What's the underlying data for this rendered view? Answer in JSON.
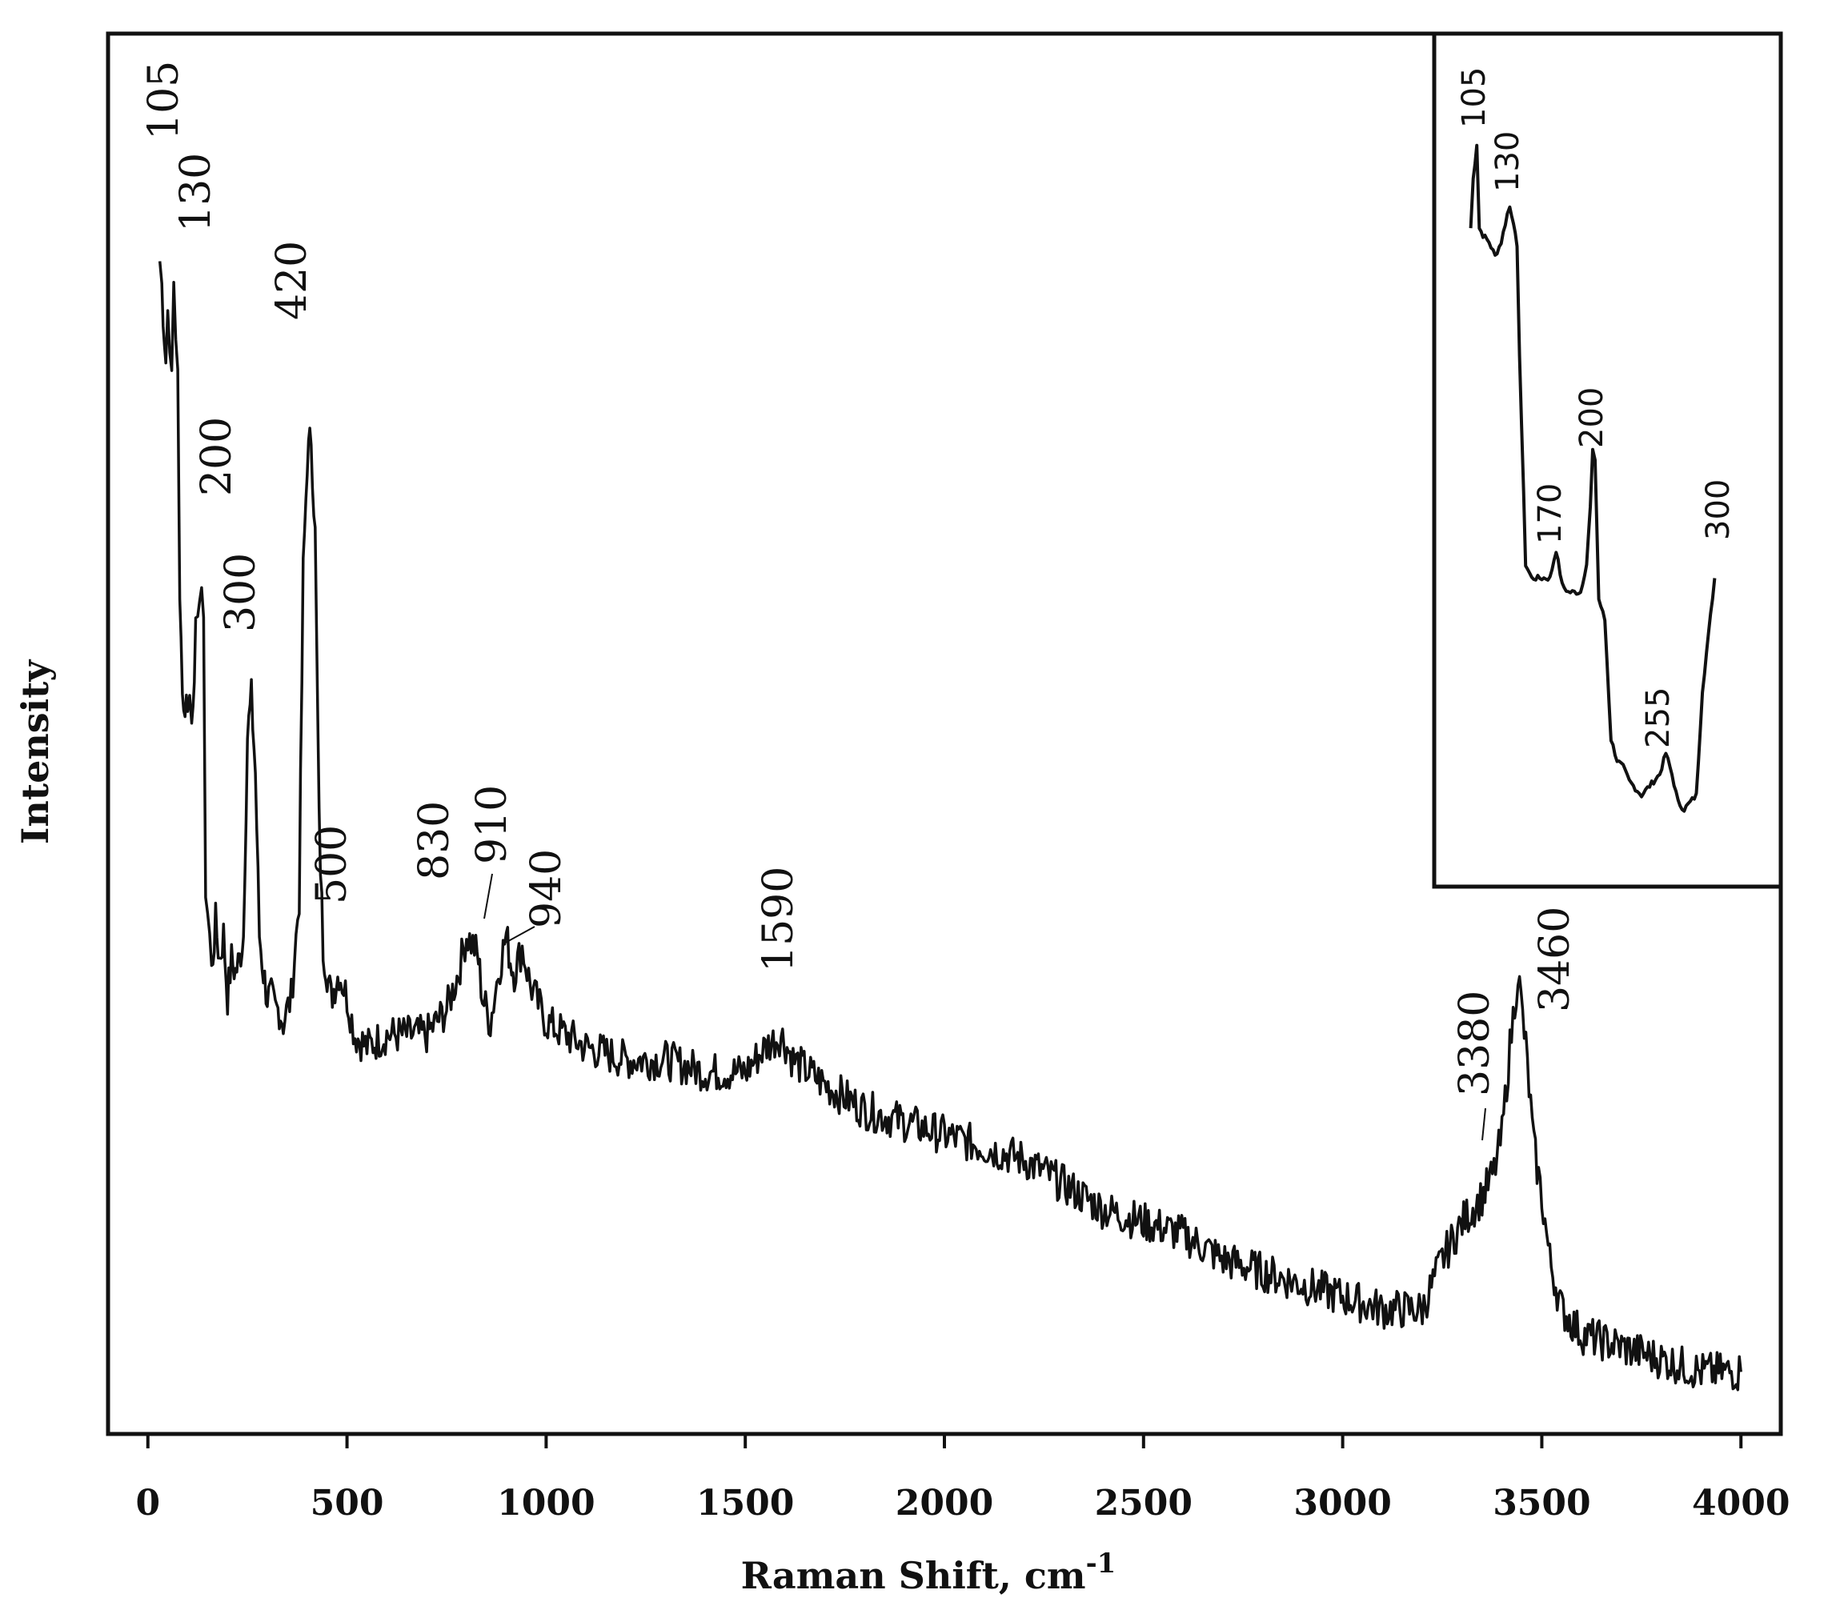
{
  "chart_data": [
    {
      "type": "line",
      "xlabel": "Raman Shift, cm",
      "xlabel_superscript": "-1",
      "ylabel": "Intensity",
      "xlim": [
        -100,
        4100
      ],
      "ylim": [
        0,
        100
      ],
      "y_ticks_shown": false,
      "grid": false,
      "x_ticks": [
        0,
        500,
        1000,
        1500,
        2000,
        2500,
        3000,
        3500,
        4000
      ],
      "x_tick_labels": [
        "0",
        "500",
        "1000",
        "1500",
        "2000",
        "2500",
        "3000",
        "3500",
        "4000"
      ],
      "series": [
        {
          "x": [
            30,
            35,
            45,
            50,
            55,
            60,
            65,
            70,
            75,
            80,
            90,
            100,
            105,
            110,
            120,
            125,
            130,
            135,
            140,
            145,
            150,
            155,
            160,
            170,
            180,
            190,
            200,
            210,
            220,
            230,
            240,
            250,
            260,
            270,
            280,
            290,
            300,
            310,
            320,
            330,
            340,
            360,
            380,
            390,
            400,
            410,
            420,
            430,
            440,
            450,
            460,
            470,
            480,
            500,
            520,
            550,
            600,
            650,
            700,
            750,
            780,
            800,
            820,
            830,
            840,
            860,
            880,
            900,
            910,
            920,
            940,
            960,
            1000,
            1100,
            1200,
            1300,
            1400,
            1500,
            1550,
            1590,
            1620,
            1700,
            1800,
            1900,
            2000,
            2100,
            2200,
            2300,
            2400,
            2500,
            2600,
            2700,
            2800,
            2900,
            3000,
            3100,
            3200,
            3250,
            3300,
            3350,
            3380,
            3400,
            3420,
            3440,
            3460,
            3480,
            3500,
            3520,
            3550,
            3600,
            3700,
            3800,
            3900,
            4000
          ],
          "y": [
            90,
            88,
            82,
            86,
            84,
            80,
            88,
            84,
            82,
            62,
            54,
            55,
            55,
            53,
            60,
            60,
            64,
            64,
            60,
            40,
            38,
            36,
            33,
            37,
            34,
            36,
            31,
            34,
            33,
            34,
            36,
            52,
            55,
            49,
            36,
            33,
            31,
            31,
            30,
            30,
            29,
            31,
            39,
            65,
            74,
            76,
            68,
            45,
            35,
            33,
            31,
            32,
            33,
            31,
            28,
            27,
            28,
            28,
            28,
            30,
            33,
            36,
            35,
            34,
            31,
            29,
            33,
            36,
            34,
            33,
            35,
            32,
            29,
            27,
            26,
            26,
            25,
            25,
            27,
            28,
            26,
            24,
            22,
            21,
            20,
            19,
            18,
            16,
            14,
            13,
            12,
            10,
            9,
            8,
            7,
            6,
            6,
            10,
            13,
            15,
            17,
            20,
            27,
            33,
            27,
            19,
            15,
            10,
            6,
            4,
            3,
            2,
            1,
            1
          ]
        }
      ],
      "peak_labels": [
        "105",
        "130",
        "200",
        "300",
        "420",
        "500",
        "830",
        "910",
        "940",
        "1590",
        "3380",
        "3460"
      ]
    },
    {
      "type": "line",
      "role": "inset",
      "xlabel": "",
      "ylabel": "",
      "x_ticks_shown": false,
      "y_ticks_shown": false,
      "xlim": [
        95,
        305
      ],
      "ylim": [
        0,
        100
      ],
      "series": [
        {
          "x": [
            100,
            102,
            105,
            107,
            110,
            115,
            120,
            125,
            130,
            132,
            135,
            138,
            140,
            145,
            150,
            155,
            160,
            165,
            170,
            175,
            180,
            185,
            190,
            195,
            198,
            200,
            202,
            205,
            210,
            215,
            220,
            225,
            230,
            235,
            240,
            245,
            250,
            255,
            260,
            265,
            270,
            275,
            280,
            285,
            290,
            295,
            300
          ],
          "y": [
            88,
            95,
            100,
            88,
            87,
            86,
            84,
            86,
            90,
            91,
            89,
            85,
            70,
            40,
            38,
            38,
            38,
            38,
            42,
            37,
            36,
            36,
            36,
            40,
            48,
            56,
            55,
            35,
            32,
            15,
            12,
            11,
            9,
            8,
            7,
            8,
            9,
            10,
            13,
            10,
            6,
            5,
            6,
            7,
            22,
            30,
            38
          ]
        }
      ],
      "peak_labels": [
        "105",
        "130",
        "170",
        "200",
        "255",
        "300"
      ]
    }
  ]
}
